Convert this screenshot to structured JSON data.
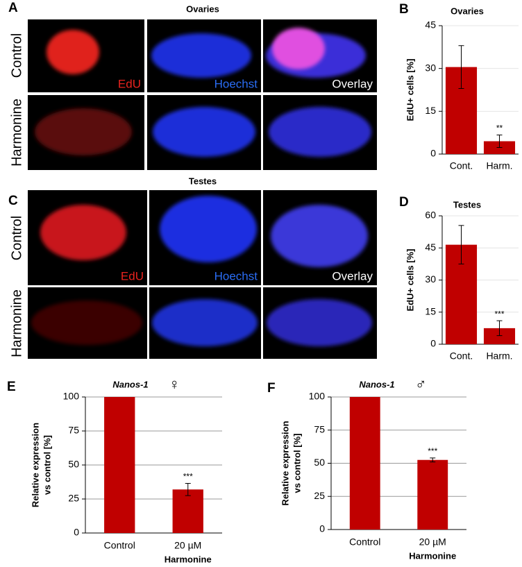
{
  "image_panels": [
    {
      "letter": "A",
      "title": "Ovaries",
      "rows": [
        "Control",
        "Harmonine"
      ],
      "channels": [
        "EdU",
        "Hoechst",
        "Overlay"
      ]
    },
    {
      "letter": "C",
      "title": "Testes",
      "rows": [
        "Control",
        "Harmonine"
      ],
      "channels": [
        "EdU",
        "Hoechst",
        "Overlay"
      ]
    }
  ],
  "chart_data": [
    {
      "type": "bar",
      "panel": "B",
      "title": "Ovaries",
      "ylabel": "EdU+ cells [%]",
      "categories": [
        "Cont.",
        "Harm."
      ],
      "values": [
        30.5,
        4.5
      ],
      "errors": [
        7.5,
        2.2
      ],
      "annotations": [
        null,
        "**"
      ],
      "color": "#c00000",
      "ylim": [
        0,
        45
      ],
      "yticks": [
        0,
        15,
        30,
        45
      ],
      "grid": true
    },
    {
      "type": "bar",
      "panel": "D",
      "title": "Testes",
      "ylabel": "EdU+ cells [%]",
      "categories": [
        "Cont.",
        "Harm."
      ],
      "values": [
        46.5,
        7.5
      ],
      "errors": [
        9,
        3.5
      ],
      "annotations": [
        null,
        "***"
      ],
      "color": "#c00000",
      "ylim": [
        0,
        60
      ],
      "yticks": [
        0,
        15,
        30,
        45,
        60
      ],
      "grid": true
    },
    {
      "type": "bar",
      "panel": "E",
      "title": "Nanos-1",
      "symbol": "♀",
      "ylabel": [
        "Relative expression",
        "vs control [%]"
      ],
      "xlabel": "Harmonine",
      "categories": [
        "Control",
        "20 µM"
      ],
      "values": [
        100,
        32
      ],
      "errors": [
        null,
        4.5
      ],
      "annotations": [
        null,
        "***"
      ],
      "color": "#c00000",
      "ylim": [
        0,
        100
      ],
      "yticks": [
        0,
        25,
        50,
        75,
        100
      ],
      "grid": true
    },
    {
      "type": "bar",
      "panel": "F",
      "title": "Nanos-1",
      "symbol": "♂",
      "ylabel": [
        "Relative expression",
        "vs control [%]"
      ],
      "xlabel": "Harmonine",
      "categories": [
        "Control",
        "20 µM"
      ],
      "values": [
        100,
        52.5
      ],
      "errors": [
        null,
        1.5
      ],
      "annotations": [
        null,
        "***"
      ],
      "color": "#c00000",
      "ylim": [
        0,
        100
      ],
      "yticks": [
        0,
        25,
        50,
        75,
        100
      ],
      "grid": true
    }
  ]
}
